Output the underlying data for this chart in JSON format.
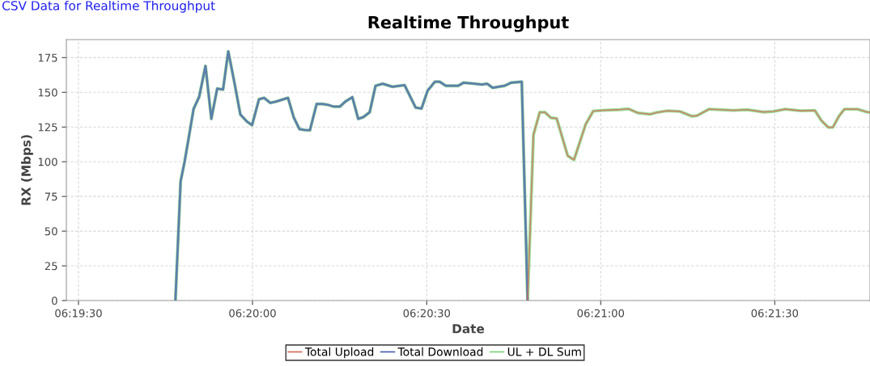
{
  "chart_data": {
    "type": "line",
    "title": "Realtime Throughput",
    "xlabel": "Date",
    "ylabel": "RX (Mbps)",
    "annotations": [
      "CSV Data for Realtime Throughput"
    ],
    "xlim": [
      6.32442,
      6.36289
    ],
    "ylim": [
      0,
      188
    ],
    "xticks": [
      {
        "value": 6.325,
        "label": "06:19:30"
      },
      {
        "value": 6.33333,
        "label": "06:20:00"
      },
      {
        "value": 6.34167,
        "label": "06:20:30"
      },
      {
        "value": 6.35,
        "label": "06:21:00"
      },
      {
        "value": 6.35833,
        "label": "06:21:30"
      }
    ],
    "yticks": [
      0,
      25,
      50,
      75,
      100,
      125,
      150,
      175
    ],
    "grid": true,
    "legend": "bottom",
    "marker": "none",
    "line_style": "solid",
    "series": [
      {
        "name": "Total Upload",
        "color": "#d46a5a",
        "x": [
          6.3465,
          6.34678,
          6.34708,
          6.34733,
          6.34761,
          6.34789,
          6.34842,
          6.34872,
          6.34928,
          6.34964,
          6.35003,
          6.35089,
          6.35133,
          6.35178,
          6.35236,
          6.35269,
          6.35319,
          6.35378,
          6.35436,
          6.35461,
          6.35519,
          6.35572,
          6.35636,
          6.357,
          6.35778,
          6.35825,
          6.35883,
          6.35958,
          6.36025,
          6.36056,
          6.36089,
          6.36111,
          6.36142,
          6.36167,
          6.36228,
          6.36275,
          6.36289
        ],
        "values": [
          0,
          119.5,
          135.6,
          135.6,
          131.7,
          131.2,
          104.3,
          101.4,
          127,
          136.5,
          137,
          137.5,
          138.1,
          135.2,
          134.2,
          135.5,
          136.7,
          136.3,
          132.8,
          133.2,
          137.9,
          137.5,
          137,
          137.5,
          135.8,
          136.2,
          137.9,
          136.7,
          137,
          129.7,
          124.8,
          124.8,
          133.2,
          137.9,
          137.9,
          135.8,
          135.5
        ]
      },
      {
        "name": "Total Download",
        "color": "#4a5fb0",
        "x": [
          6.32964,
          6.32989,
          6.33008,
          6.33028,
          6.33051,
          6.33078,
          6.33108,
          6.33136,
          6.33164,
          6.33192,
          6.33217,
          6.33247,
          6.33275,
          6.33306,
          6.33331,
          6.33364,
          6.33389,
          6.33418,
          6.33447,
          6.33503,
          6.33531,
          6.33558,
          6.33583,
          6.33608,
          6.3364,
          6.33667,
          6.33694,
          6.33722,
          6.33751,
          6.33778,
          6.33811,
          6.33839,
          6.33864,
          6.33894,
          6.33922,
          6.33956,
          6.34003,
          6.34061,
          6.34114,
          6.34142,
          6.34171,
          6.34206,
          6.34229,
          6.34258,
          6.34317,
          6.34344,
          6.34397,
          6.34431,
          6.34456,
          6.34483,
          6.34539,
          6.34572,
          6.34622,
          6.3465
        ],
        "values": [
          0,
          86,
          100,
          117.6,
          138,
          146.9,
          169,
          130.9,
          152.7,
          152,
          179.5,
          156.6,
          134,
          129,
          126.4,
          145,
          146,
          142.4,
          143.4,
          146,
          131.7,
          123.5,
          122.9,
          122.7,
          141.6,
          141.6,
          141,
          139.7,
          139.7,
          143.4,
          146.5,
          130.9,
          132.2,
          135.7,
          154.7,
          156.2,
          154,
          155.2,
          139,
          138.3,
          151.1,
          157.6,
          157.6,
          154.7,
          154.7,
          157,
          156.2,
          155.6,
          156.2,
          153.3,
          154.7,
          157,
          157.6,
          0
        ]
      },
      {
        "name": "UL + DL Sum",
        "color": "#7ad47a",
        "x": [
          6.32964,
          6.32989,
          6.33008,
          6.33028,
          6.33051,
          6.33078,
          6.33108,
          6.33136,
          6.33164,
          6.33192,
          6.33217,
          6.33247,
          6.33275,
          6.33306,
          6.33331,
          6.33364,
          6.33389,
          6.33418,
          6.33447,
          6.33503,
          6.33531,
          6.33558,
          6.33583,
          6.33608,
          6.3364,
          6.33667,
          6.33694,
          6.33722,
          6.33751,
          6.33778,
          6.33811,
          6.33839,
          6.33864,
          6.33894,
          6.33922,
          6.33956,
          6.34003,
          6.34061,
          6.34114,
          6.34142,
          6.34171,
          6.34206,
          6.34229,
          6.34258,
          6.34317,
          6.34344,
          6.34397,
          6.34431,
          6.34456,
          6.34483,
          6.34539,
          6.34572,
          6.34622,
          6.3465,
          6.34678,
          6.34708,
          6.34733,
          6.34761,
          6.34789,
          6.34842,
          6.34872,
          6.34928,
          6.34964,
          6.35003,
          6.35089,
          6.35133,
          6.35178,
          6.35236,
          6.35269,
          6.35319,
          6.35378,
          6.35436,
          6.35461,
          6.35519,
          6.35572,
          6.35636,
          6.357,
          6.35778,
          6.35825,
          6.35883,
          6.35958,
          6.36025,
          6.36056,
          6.36089,
          6.36111,
          6.36142,
          6.36167,
          6.36228,
          6.36275,
          6.36289
        ],
        "values": [
          0,
          86,
          100,
          117.6,
          138,
          146.9,
          169,
          130.9,
          152.7,
          152,
          179.5,
          156.6,
          134,
          129,
          126.4,
          145,
          146,
          142.4,
          143.4,
          146,
          131.7,
          123.5,
          122.9,
          122.7,
          141.6,
          141.6,
          141,
          139.7,
          139.7,
          143.4,
          146.5,
          130.9,
          132.2,
          135.7,
          154.7,
          156.2,
          154,
          155.2,
          139,
          138.3,
          151.1,
          157.6,
          157.6,
          154.7,
          154.7,
          157,
          156.2,
          155.6,
          156.2,
          153.3,
          154.7,
          157,
          157.6,
          0,
          119.5,
          135.6,
          135.6,
          131.7,
          131.2,
          104.3,
          101.4,
          127,
          136.5,
          137,
          137.5,
          138.1,
          135.2,
          134.2,
          135.5,
          136.7,
          136.3,
          132.8,
          133.2,
          137.9,
          137.5,
          137,
          137.5,
          135.8,
          136.2,
          137.9,
          136.7,
          137,
          129.7,
          124.8,
          124.8,
          133.2,
          137.9,
          137.9,
          135.8,
          135.5
        ]
      }
    ]
  }
}
